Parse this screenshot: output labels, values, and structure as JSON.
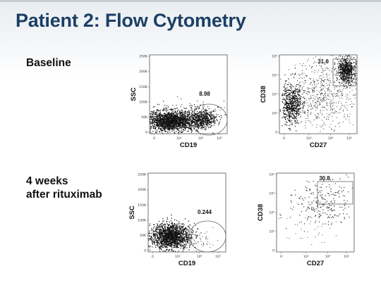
{
  "slide": {
    "title": "Patient 2: Flow Cytometry",
    "row1_label": "Baseline",
    "row2_label_line1": "4 weeks",
    "row2_label_line2": "after rituximab"
  },
  "plots": {
    "baseline_ssc": {
      "xlabel": "CD19",
      "ylabel": "SSC",
      "gate_value": "8.98",
      "y_ticks": [
        "250K",
        "200K",
        "150K",
        "100K",
        "50K",
        "0"
      ],
      "x_ticks": [
        "0",
        "10³",
        "10⁴",
        "10⁵"
      ]
    },
    "baseline_cd38": {
      "xlabel": "CD27",
      "ylabel": "CD38",
      "gate_value": "31.6",
      "y_ticks": [
        "10⁵",
        "10⁴",
        "10³",
        "10²",
        "0"
      ],
      "x_ticks": [
        "0",
        "10³",
        "10⁴",
        "10⁵"
      ]
    },
    "post_ssc": {
      "xlabel": "CD19",
      "ylabel": "SSC",
      "gate_value": "0.244",
      "y_ticks": [
        "250K",
        "200K",
        "150K",
        "100K",
        "50K",
        "0"
      ],
      "x_ticks": [
        "0",
        "10³",
        "10⁴",
        "10⁵"
      ]
    },
    "post_cd38": {
      "xlabel": "CD27",
      "ylabel": "CD38",
      "gate_value": "30.8",
      "y_ticks": [
        "10⁵",
        "10⁴",
        "10³",
        "10²",
        "0"
      ],
      "x_ticks": [
        "0",
        "10³",
        "10⁴",
        "10⁵"
      ]
    }
  }
}
